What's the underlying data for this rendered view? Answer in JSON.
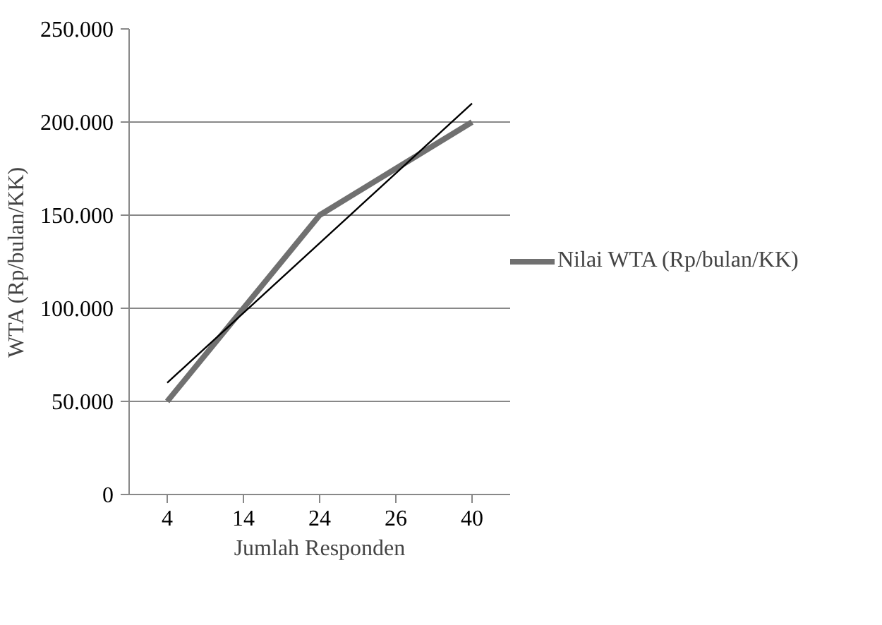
{
  "chart_data": {
    "type": "line",
    "xlabel": "Jumlah Responden",
    "ylabel": "WTA (Rp/bulan/KK)",
    "categories": [
      "4",
      "14",
      "24",
      "26",
      "40"
    ],
    "series": [
      {
        "name": "Nilai WTA (Rp/bulan/KK)",
        "color": "#707070",
        "values": [
          50000,
          100000,
          150000,
          175000,
          200000
        ]
      },
      {
        "type": "line",
        "color": "#000000",
        "values": [
          60000,
          97500,
          135000,
          172500,
          210000
        ]
      }
    ],
    "ylim": [
      0,
      250000
    ],
    "yticks": [
      {
        "value": 0,
        "label": "0"
      },
      {
        "value": 50000,
        "label": "50.000"
      },
      {
        "value": 100000,
        "label": "100.000"
      },
      {
        "value": 150000,
        "label": "150.000"
      },
      {
        "value": 200000,
        "label": "200.000"
      },
      {
        "value": 250000,
        "label": "250.000"
      }
    ],
    "grid": "y",
    "legend": "right"
  }
}
